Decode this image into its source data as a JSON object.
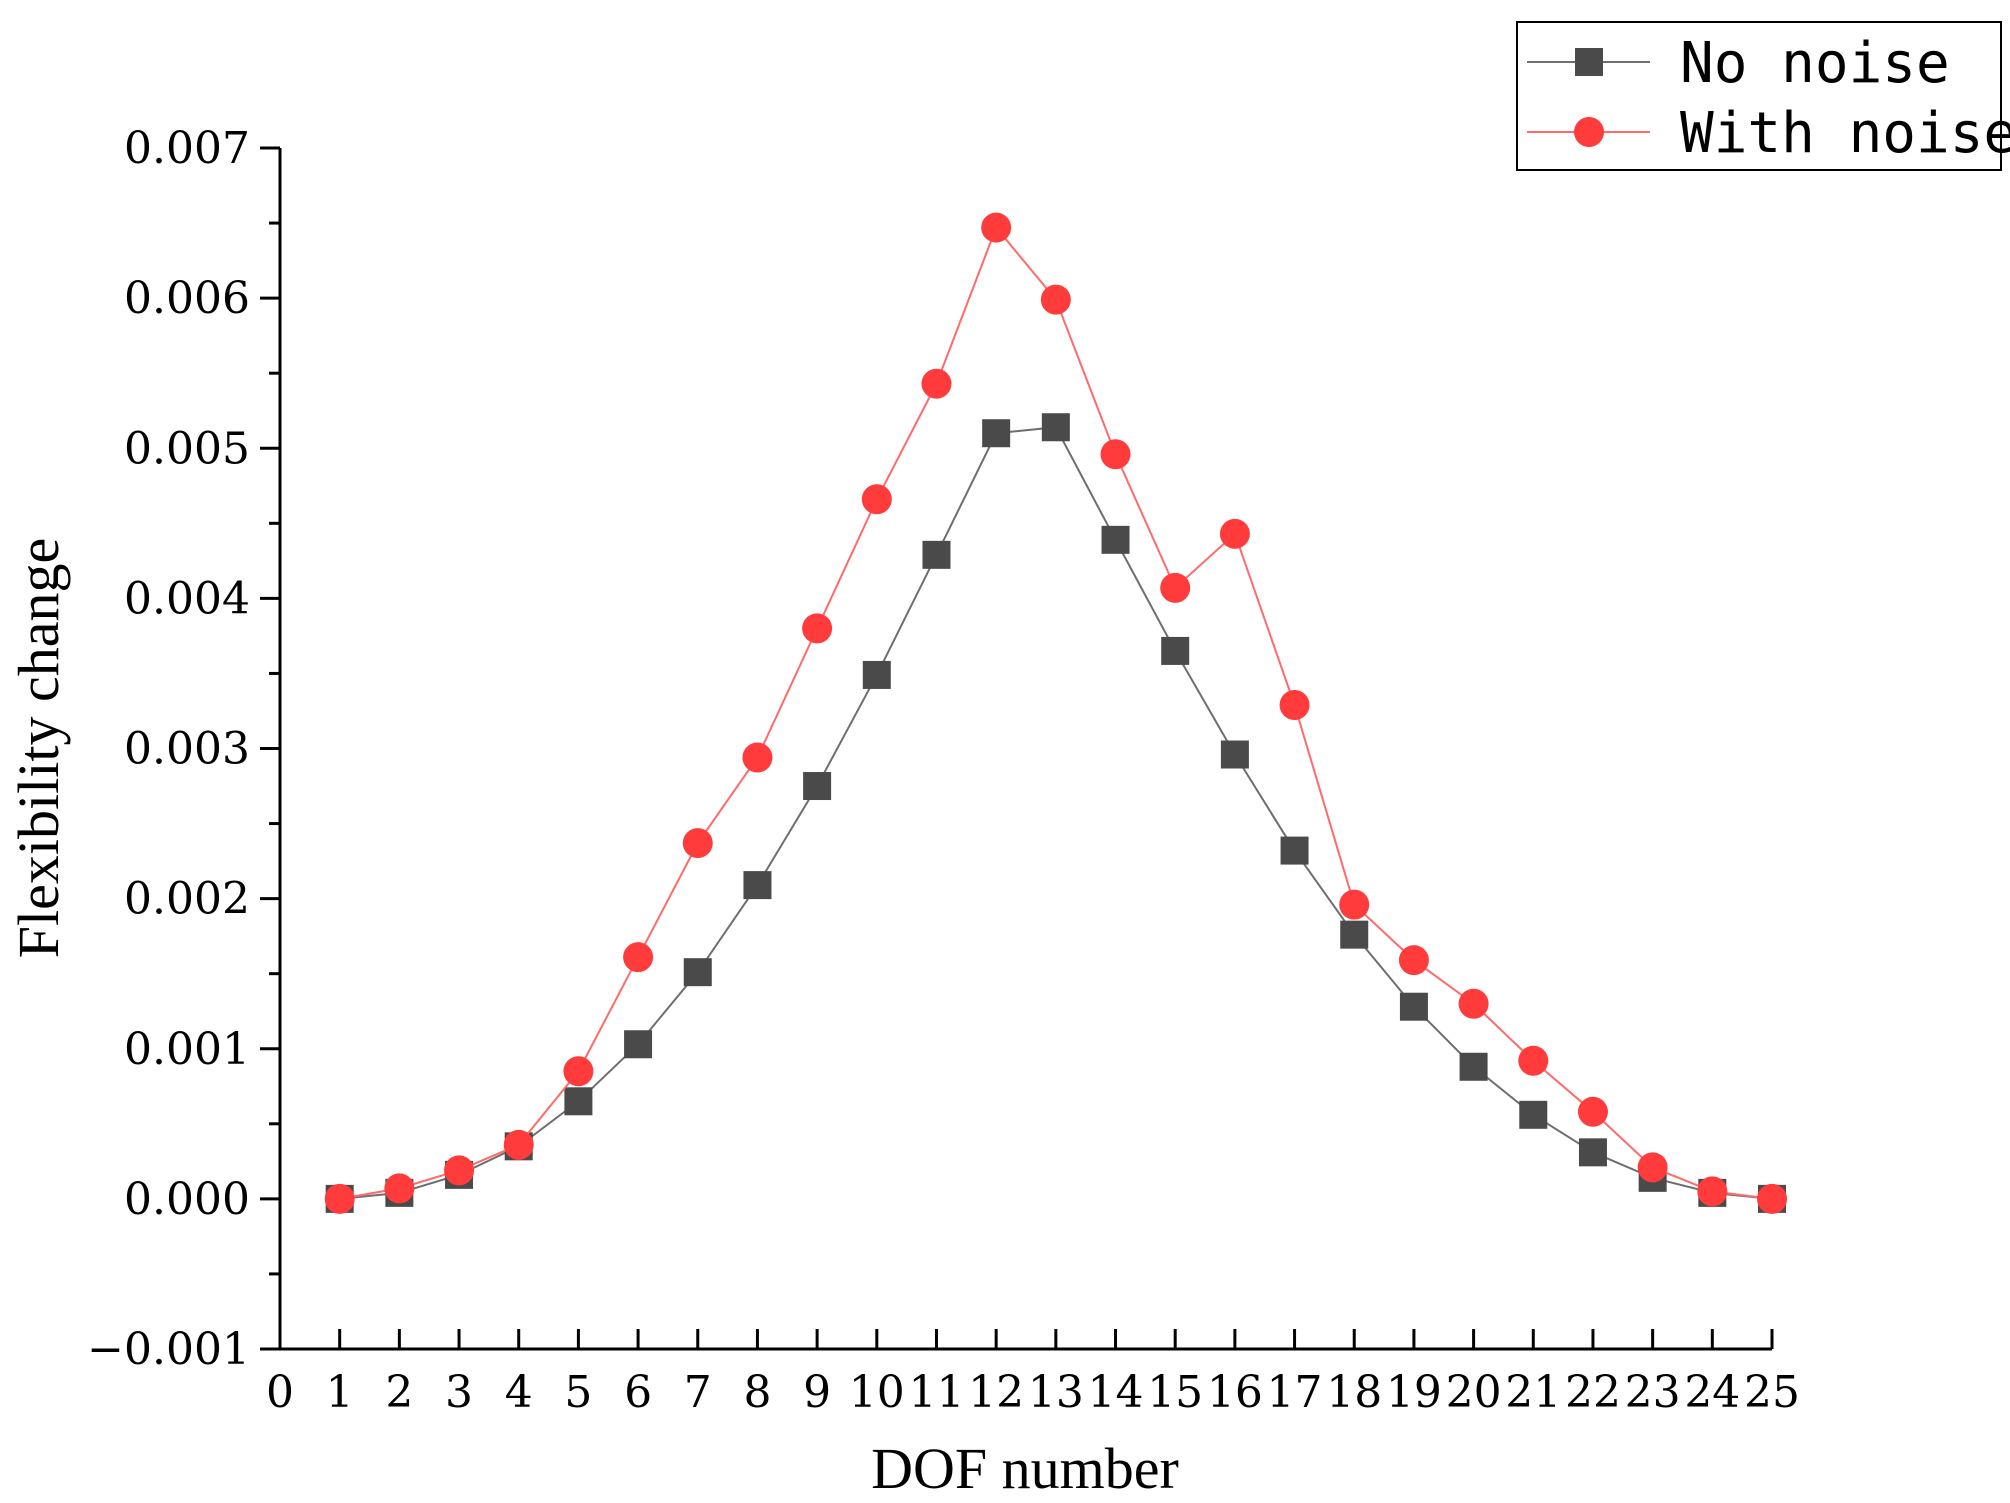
{
  "chart_data": {
    "type": "line",
    "xlabel": "DOF number",
    "ylabel": "Flexibility change",
    "xlim": [
      0,
      25
    ],
    "ylim": [
      -0.001,
      0.007
    ],
    "x_ticks": [
      0,
      1,
      2,
      3,
      4,
      5,
      6,
      7,
      8,
      9,
      10,
      11,
      12,
      13,
      14,
      15,
      16,
      17,
      18,
      19,
      20,
      21,
      22,
      23,
      24,
      25
    ],
    "y_ticks": [
      -0.001,
      0.0,
      0.001,
      0.002,
      0.003,
      0.004,
      0.005,
      0.006,
      0.007
    ],
    "y_tick_labels": [
      "−0.001",
      "0.000",
      "0.001",
      "0.002",
      "0.003",
      "0.004",
      "0.005",
      "0.006",
      "0.007"
    ],
    "grid": false,
    "legend_position": "top-right",
    "x": [
      1,
      2,
      3,
      4,
      5,
      6,
      7,
      8,
      9,
      10,
      11,
      12,
      13,
      14,
      15,
      16,
      17,
      18,
      19,
      20,
      21,
      22,
      23,
      24,
      25
    ],
    "series": [
      {
        "name": "No noise",
        "marker": "square",
        "color": "#4a4a4a",
        "line_color": "#6e6e6e",
        "values": [
          0.0,
          4e-05,
          0.00016,
          0.00035,
          0.00065,
          0.00103,
          0.00151,
          0.00209,
          0.00275,
          0.00349,
          0.00429,
          0.0051,
          0.00514,
          0.00439,
          0.00365,
          0.00296,
          0.00232,
          0.00176,
          0.00128,
          0.00088,
          0.00056,
          0.00031,
          0.00014,
          4e-05,
          0.0
        ]
      },
      {
        "name": "With noise",
        "marker": "circle",
        "color": "#ff3b3b",
        "line_color": "#ff6a6a",
        "values": [
          0.0,
          7e-05,
          0.00019,
          0.00036,
          0.00085,
          0.00161,
          0.00237,
          0.00294,
          0.0038,
          0.00466,
          0.00543,
          0.00647,
          0.00599,
          0.00496,
          0.00407,
          0.00443,
          0.00329,
          0.00196,
          0.00159,
          0.0013,
          0.00092,
          0.00058,
          0.00021,
          5e-05,
          0.0
        ]
      }
    ]
  }
}
